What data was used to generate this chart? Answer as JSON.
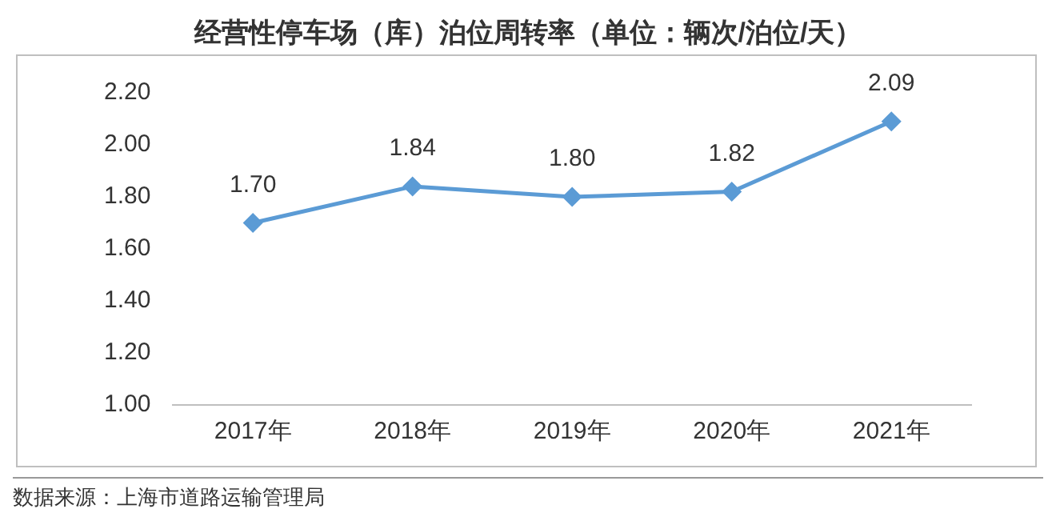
{
  "chart_data": {
    "type": "line",
    "title": "经营性停车场（库）泊位周转率（单位：辆次/泊位/天）",
    "categories": [
      "2017年",
      "2018年",
      "2019年",
      "2020年",
      "2021年"
    ],
    "series": [
      {
        "color": "#5b9bd5",
        "values": [
          1.7,
          1.84,
          1.8,
          1.82,
          2.09
        ],
        "value_labels": [
          "1.70",
          "1.84",
          "1.80",
          "1.82",
          "2.09"
        ]
      }
    ],
    "ylim": [
      1.0,
      2.2
    ],
    "yticks": [
      {
        "value": 1.0,
        "label": "1.00"
      },
      {
        "value": 1.2,
        "label": "1.20"
      },
      {
        "value": 1.4,
        "label": "1.40"
      },
      {
        "value": 1.6,
        "label": "1.60"
      },
      {
        "value": 1.8,
        "label": "1.80"
      },
      {
        "value": 2.0,
        "label": "2.00"
      },
      {
        "value": 2.2,
        "label": "2.20"
      }
    ],
    "grid": false,
    "legend": false,
    "marker": "diamond",
    "line_style": "solid",
    "annotations": [
      "数据来源：上海市道路运输管理局"
    ]
  }
}
